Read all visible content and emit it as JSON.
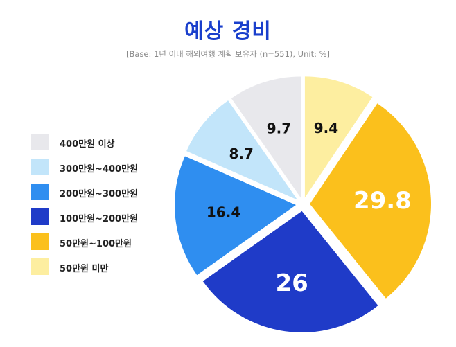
{
  "chart_data": {
    "type": "pie",
    "title": "예상 경비",
    "subtitle": "[Base: 1년 이내 해외여행 계획 보유자 (n=551), Unit: %]",
    "legend_position": "left",
    "slices": [
      {
        "label": "50만원 미만",
        "value": 9.4,
        "display": "9.4",
        "color": "#fdeea0",
        "text_color": "#111111",
        "font_size": 20
      },
      {
        "label": "50만원~100만원",
        "value": 29.8,
        "display": "29.8",
        "color": "#fbc01c",
        "text_color": "#ffffff",
        "font_size": 34
      },
      {
        "label": "100만원~200만원",
        "value": 26,
        "display": "26",
        "color": "#1f3bc8",
        "text_color": "#ffffff",
        "font_size": 34
      },
      {
        "label": "200만원~300만원",
        "value": 16.4,
        "display": "16.4",
        "color": "#2f8ef0",
        "text_color": "#111111",
        "font_size": 20
      },
      {
        "label": "300만원~400만원",
        "value": 8.7,
        "display": "8.7",
        "color": "#c2e5fa",
        "text_color": "#111111",
        "font_size": 20
      },
      {
        "label": "400만원 이상",
        "value": 9.7,
        "display": "9.7",
        "color": "#e8e8ec",
        "text_color": "#111111",
        "font_size": 20
      }
    ],
    "legend_order": [
      5,
      4,
      3,
      2,
      1,
      0
    ]
  }
}
